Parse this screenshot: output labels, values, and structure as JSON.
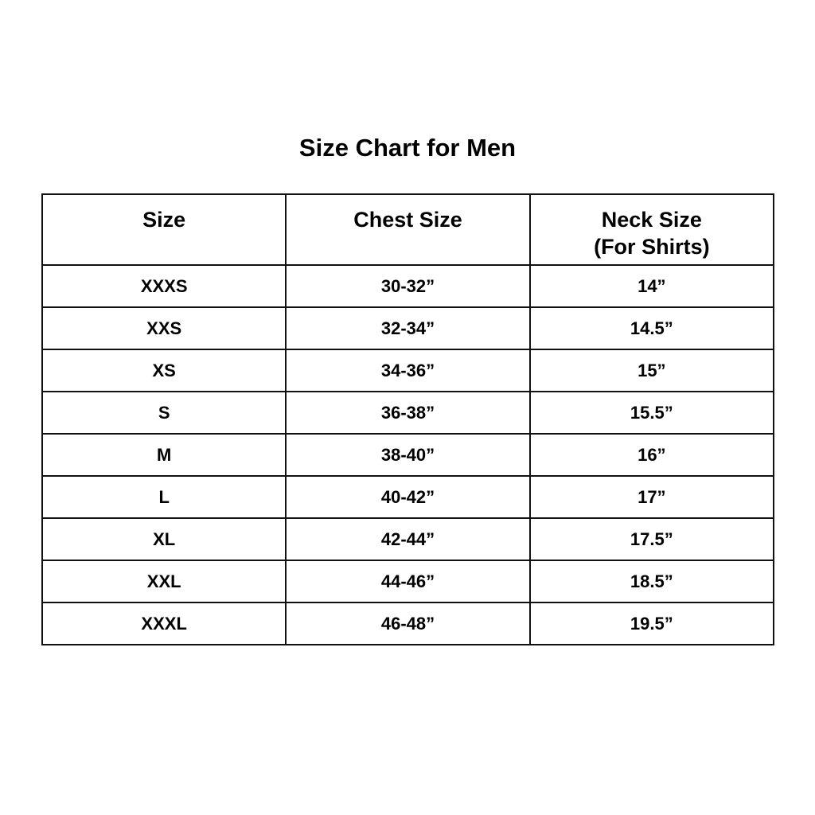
{
  "title": "Size Chart for Men",
  "columns": [
    {
      "label": "Size",
      "sublabel": ""
    },
    {
      "label": "Chest Size",
      "sublabel": ""
    },
    {
      "label": "Neck Size",
      "sublabel": "(For Shirts)"
    }
  ],
  "rows": [
    [
      "XXXS",
      "30-32”",
      "14”"
    ],
    [
      "XXS",
      "32-34”",
      "14.5”"
    ],
    [
      "XS",
      "34-36”",
      "15”"
    ],
    [
      "S",
      "36-38”",
      "15.5”"
    ],
    [
      "M",
      "38-40”",
      "16”"
    ],
    [
      "L",
      "40-42”",
      "17”"
    ],
    [
      "XL",
      "42-44”",
      "17.5”"
    ],
    [
      "XXL",
      "44-46”",
      "18.5”"
    ],
    [
      "XXXL",
      "46-48”",
      "19.5”"
    ]
  ]
}
